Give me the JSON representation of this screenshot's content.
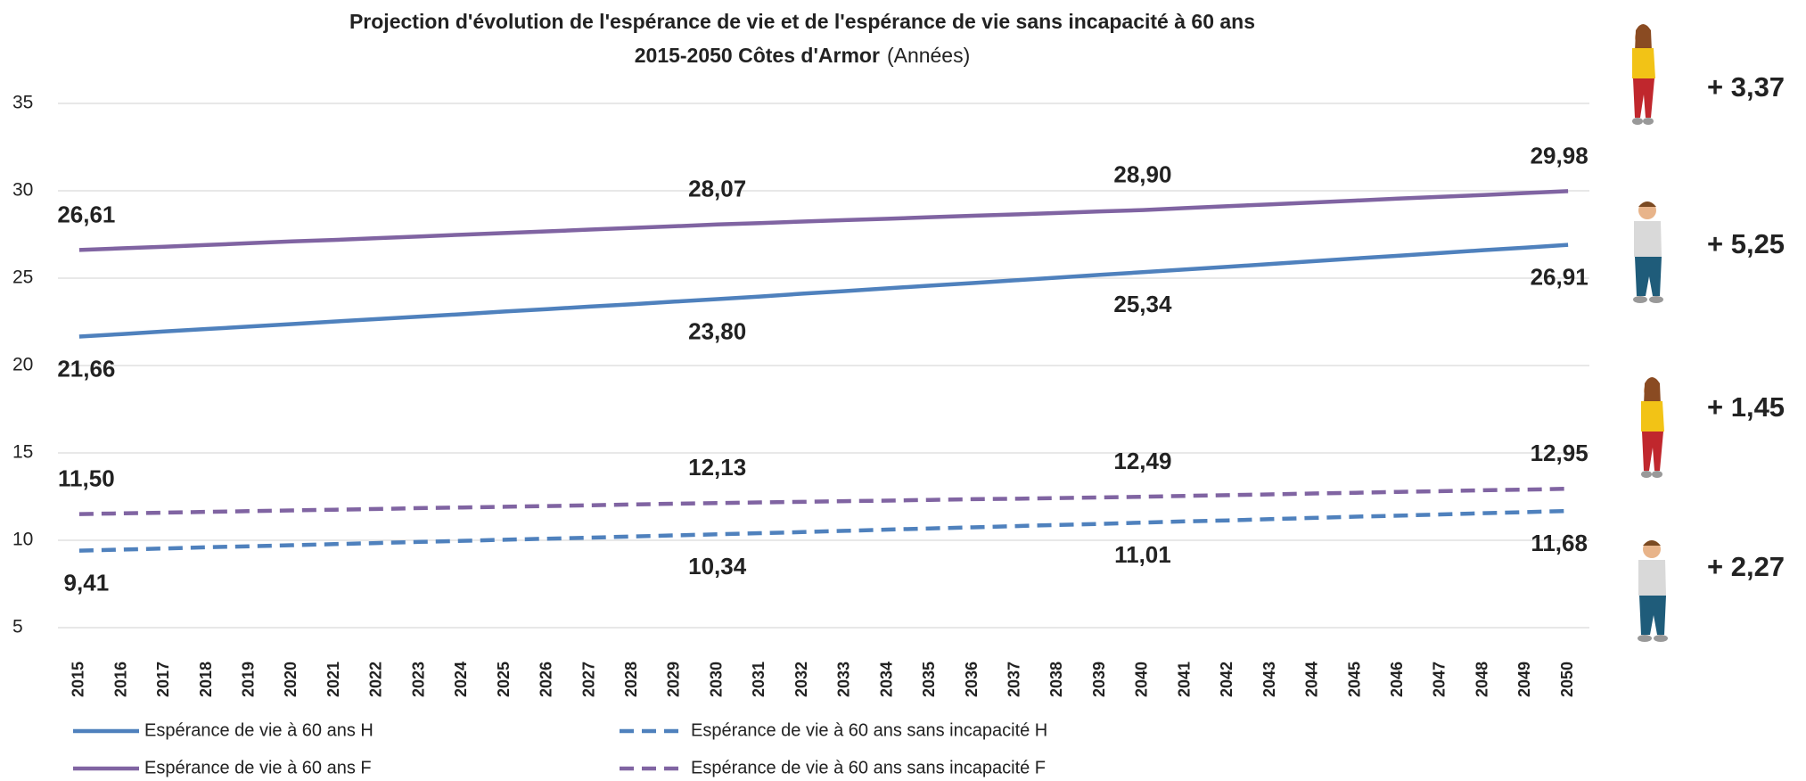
{
  "chart_data": {
    "type": "line",
    "title": "Projection d'évolution de l'espérance de vie et de l'espérance de vie sans incapacité à 60 ans",
    "title_line2": "2015-2050 Côtes d'Armor",
    "title_unit": "(Années)",
    "categories": [
      "2015",
      "2016",
      "2017",
      "2018",
      "2019",
      "2020",
      "2021",
      "2022",
      "2023",
      "2024",
      "2025",
      "2026",
      "2027",
      "2028",
      "2029",
      "2030",
      "2031",
      "2032",
      "2033",
      "2034",
      "2035",
      "2036",
      "2037",
      "2038",
      "2039",
      "2040",
      "2041",
      "2042",
      "2043",
      "2044",
      "2045",
      "2046",
      "2047",
      "2048",
      "2049",
      "2050"
    ],
    "ylim": [
      5,
      35
    ],
    "yticks": [
      5,
      10,
      15,
      20,
      25,
      30,
      35
    ],
    "grid": true,
    "series": [
      {
        "name": "Espérance de vie à 60 ans H",
        "color": "#4f81bd",
        "dash": false,
        "values": [
          21.66,
          21.8,
          21.95,
          22.09,
          22.23,
          22.37,
          22.52,
          22.66,
          22.8,
          22.94,
          23.09,
          23.23,
          23.37,
          23.51,
          23.66,
          23.8,
          23.95,
          24.11,
          24.26,
          24.42,
          24.57,
          24.72,
          24.88,
          25.03,
          25.19,
          25.34,
          25.5,
          25.65,
          25.81,
          25.97,
          26.13,
          26.28,
          26.44,
          26.6,
          26.75,
          26.91
        ],
        "value_labels": [
          "21,66",
          null,
          null,
          null,
          null,
          null,
          null,
          null,
          null,
          null,
          null,
          null,
          null,
          null,
          null,
          "23,80",
          null,
          null,
          null,
          null,
          null,
          null,
          null,
          null,
          null,
          "25,34",
          null,
          null,
          null,
          null,
          null,
          null,
          null,
          null,
          null,
          "26,91"
        ]
      },
      {
        "name": "Espérance de vie à 60 ans sans incapacité H",
        "color": "#4f81bd",
        "dash": true,
        "values": [
          9.41,
          9.47,
          9.53,
          9.6,
          9.66,
          9.72,
          9.78,
          9.84,
          9.91,
          9.97,
          10.03,
          10.09,
          10.15,
          10.22,
          10.28,
          10.34,
          10.41,
          10.47,
          10.54,
          10.61,
          10.68,
          10.74,
          10.81,
          10.88,
          10.94,
          11.01,
          11.08,
          11.14,
          11.21,
          11.28,
          11.35,
          11.41,
          11.48,
          11.55,
          11.61,
          11.68
        ],
        "value_labels": [
          "9,41",
          null,
          null,
          null,
          null,
          null,
          null,
          null,
          null,
          null,
          null,
          null,
          null,
          null,
          null,
          "10,34",
          null,
          null,
          null,
          null,
          null,
          null,
          null,
          null,
          null,
          "11,01",
          null,
          null,
          null,
          null,
          null,
          null,
          null,
          null,
          null,
          "11,68"
        ]
      },
      {
        "name": "Espérance de vie à 60 ans F",
        "color": "#8064a2",
        "dash": false,
        "values": [
          26.61,
          26.71,
          26.8,
          26.9,
          27.0,
          27.1,
          27.19,
          27.29,
          27.39,
          27.49,
          27.58,
          27.68,
          27.78,
          27.88,
          27.97,
          28.07,
          28.15,
          28.24,
          28.32,
          28.4,
          28.49,
          28.57,
          28.65,
          28.73,
          28.82,
          28.9,
          29.01,
          29.12,
          29.22,
          29.33,
          29.44,
          29.55,
          29.66,
          29.76,
          29.87,
          29.98
        ],
        "value_labels": [
          "26,61",
          null,
          null,
          null,
          null,
          null,
          null,
          null,
          null,
          null,
          null,
          null,
          null,
          null,
          null,
          "28,07",
          null,
          null,
          null,
          null,
          null,
          null,
          null,
          null,
          null,
          "28,90",
          null,
          null,
          null,
          null,
          null,
          null,
          null,
          null,
          null,
          "29,98"
        ]
      },
      {
        "name": "Espérance de vie à 60 ans sans incapacité F",
        "color": "#8064a2",
        "dash": true,
        "values": [
          11.5,
          11.54,
          11.58,
          11.63,
          11.67,
          11.71,
          11.75,
          11.79,
          11.84,
          11.88,
          11.92,
          11.96,
          12.0,
          12.05,
          12.09,
          12.13,
          12.17,
          12.2,
          12.24,
          12.27,
          12.31,
          12.35,
          12.38,
          12.42,
          12.45,
          12.49,
          12.54,
          12.58,
          12.63,
          12.68,
          12.72,
          12.77,
          12.81,
          12.86,
          12.9,
          12.95
        ],
        "value_labels": [
          "11,50",
          null,
          null,
          null,
          null,
          null,
          null,
          null,
          null,
          null,
          null,
          null,
          null,
          null,
          null,
          "12,13",
          null,
          null,
          null,
          null,
          null,
          null,
          null,
          null,
          null,
          "12,49",
          null,
          null,
          null,
          null,
          null,
          null,
          null,
          null,
          null,
          "12,95"
        ]
      }
    ],
    "annotations": [
      {
        "label": "+ 3,37",
        "color": "#c0272d"
      },
      {
        "label": "+ 5,25",
        "color": "#1f5c7a"
      },
      {
        "label": "+ 1,45",
        "color": "#c0272d"
      },
      {
        "label": "+ 2,27",
        "color": "#1f5c7a"
      }
    ]
  }
}
